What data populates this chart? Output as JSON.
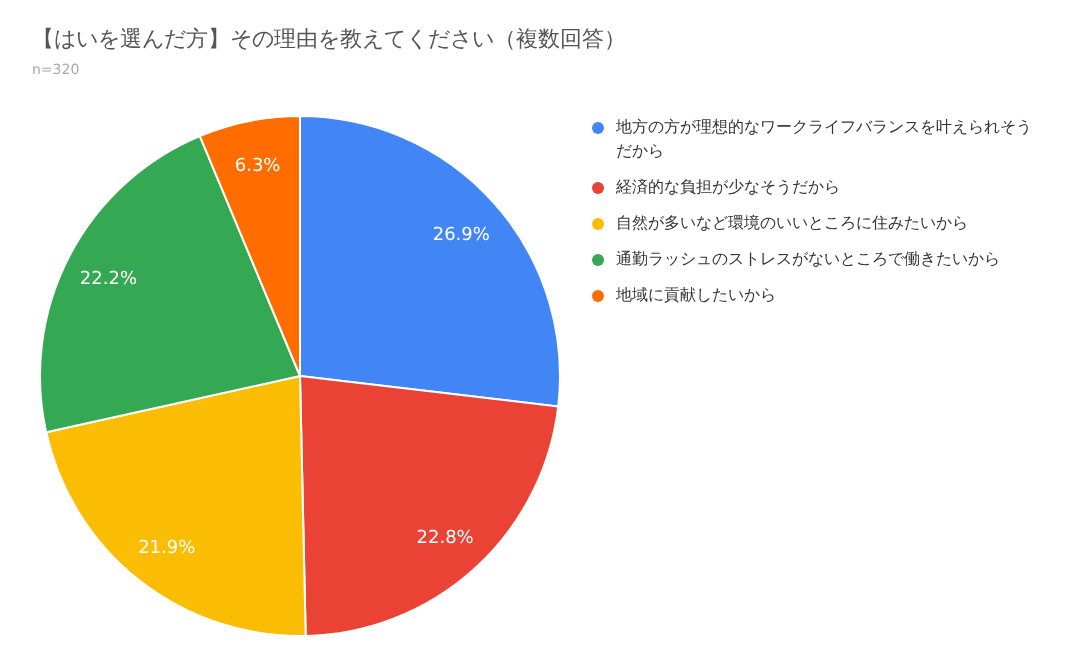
{
  "chart_data": {
    "type": "pie",
    "title": "【はいを選んだ方】その理由を教えてください（複数回答）",
    "subtitle": "n=320",
    "categories": [
      "地方の方が理想的なワークライフバランスを叶えられそうだから",
      "経済的な負担が少なそうだから",
      "自然が多いなど環境のいいところに住みたいから",
      "通勤ラッシュのストレスがないところで働きたいから",
      "地域に貢献したいから"
    ],
    "values": [
      26.9,
      22.8,
      21.9,
      22.2,
      6.3
    ],
    "colors": [
      "#4285f4",
      "#ea4335",
      "#fbbc04",
      "#34a853",
      "#ff6d01"
    ],
    "value_labels": [
      "26.9%",
      "22.8%",
      "21.9%",
      "22.2%",
      "6.3%"
    ],
    "legend": "right"
  }
}
